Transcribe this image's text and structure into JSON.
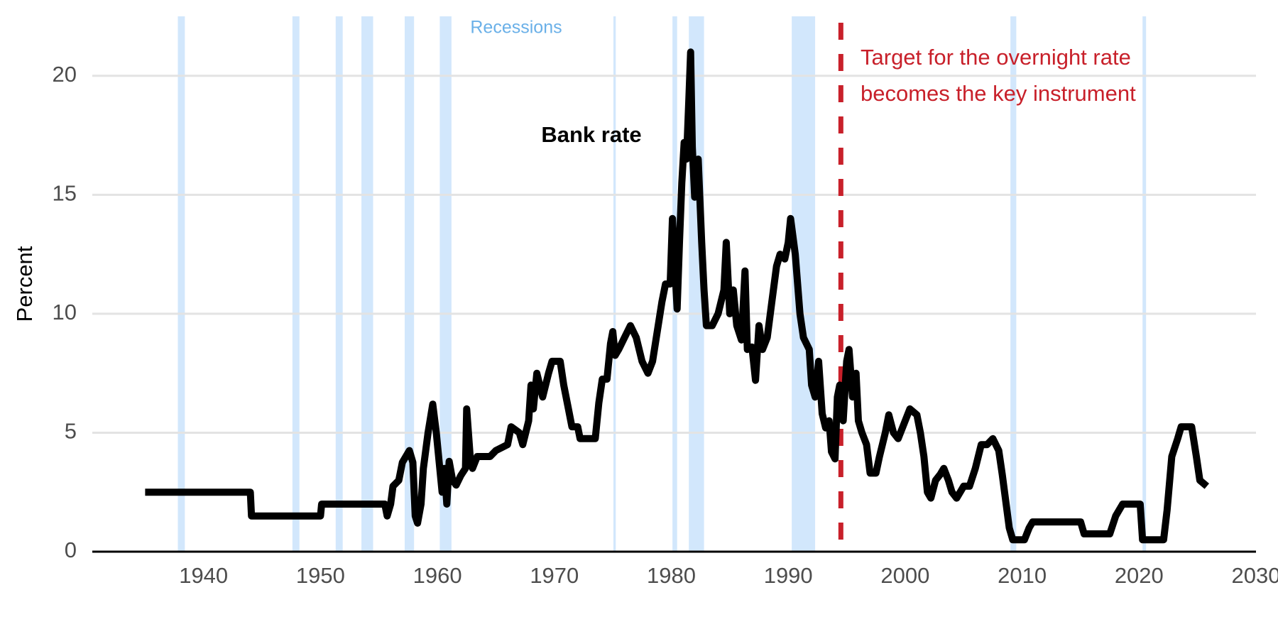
{
  "chart_data": {
    "type": "line",
    "y_label": "Percent",
    "recession_label": "Recessions",
    "target_note": [
      "Target for the overnight rate",
      "becomes the key instrument"
    ],
    "target_year": 1994.5,
    "target_color": "#c8202a",
    "recession_color": "#d2e7fc",
    "recessions": [
      [
        1937.8,
        1938.4
      ],
      [
        1947.6,
        1948.2
      ],
      [
        1951.3,
        1951.9
      ],
      [
        1953.5,
        1954.5
      ],
      [
        1957.2,
        1958.0
      ],
      [
        1960.2,
        1961.2
      ],
      [
        1975.05,
        1975.25
      ],
      [
        1980.1,
        1980.5
      ],
      [
        1981.5,
        1982.8
      ],
      [
        1990.3,
        1992.3
      ],
      [
        2009.0,
        2009.5
      ],
      [
        2020.3,
        2020.6
      ]
    ],
    "xlim": [
      1930,
      2030
    ],
    "ylim": [
      0,
      22.5
    ],
    "xticks": [
      1940,
      1950,
      1960,
      1970,
      1980,
      1990,
      2000,
      2010,
      2020,
      2030
    ],
    "yticks": [
      0,
      5,
      10,
      15,
      20
    ],
    "grid": true,
    "x": [
      1935,
      1944,
      1944.1,
      1950,
      1950.1,
      1955.5,
      1955.7,
      1956,
      1956.2,
      1956.7,
      1957,
      1957.3,
      1957.6,
      1957.9,
      1958.1,
      1958.3,
      1958.6,
      1958.8,
      1959.2,
      1959.6,
      1959.9,
      1960.2,
      1960.4,
      1960.6,
      1960.8,
      1961,
      1961.3,
      1961.6,
      1962,
      1962.4,
      1962.5,
      1962.8,
      1963,
      1963.4,
      1964.5,
      1965,
      1966,
      1966.3,
      1967,
      1967.3,
      1967.8,
      1968,
      1968.2,
      1968.5,
      1969,
      1969.5,
      1969.8,
      1970.5,
      1970.8,
      1971.2,
      1971.5,
      1972,
      1972.2,
      1973.5,
      1973.8,
      1974.1,
      1974.5,
      1974.8,
      1975,
      1975.2,
      1975.5,
      1976,
      1976.5,
      1977,
      1977.5,
      1978,
      1978.4,
      1978.8,
      1979.2,
      1979.5,
      1979.9,
      1980.1,
      1980.3,
      1980.5,
      1980.7,
      1980.9,
      1981.1,
      1981.3,
      1981.5,
      1981.65,
      1981.8,
      1982,
      1982.3,
      1982.6,
      1982.8,
      1983,
      1983.5,
      1984,
      1984.5,
      1984.7,
      1985,
      1985.3,
      1985.6,
      1986,
      1986.3,
      1986.5,
      1986.9,
      1987.2,
      1987.5,
      1987.8,
      1988.2,
      1988.6,
      1989,
      1989.3,
      1989.7,
      1990,
      1990.2,
      1990.6,
      1991,
      1991.3,
      1991.8,
      1992,
      1992.3,
      1992.6,
      1992.9,
      1993.2,
      1993.5,
      1993.7,
      1994,
      1994.2,
      1994.4,
      1994.7,
      1995,
      1995.2,
      1995.5,
      1995.8,
      1996,
      1996.3,
      1996.7,
      1997,
      1997.5,
      1997.8,
      1998.3,
      1998.6,
      1999,
      1999.4,
      2000,
      2000.4,
      2001,
      2001.3,
      2001.6,
      2001.9,
      2002.2,
      2002.6,
      2003,
      2003.3,
      2003.7,
      2004,
      2004.4,
      2005,
      2005.5,
      2006,
      2006.5,
      2007,
      2007.5,
      2008,
      2008.3,
      2008.9,
      2009.2,
      2010.2,
      2010.6,
      2010.9,
      2015,
      2015.3,
      2017.5,
      2018,
      2018.6,
      2020.1,
      2020.3,
      2022.1,
      2022.4,
      2022.8,
      2023.3,
      2023.6,
      2024.5,
      2024.9,
      2025.2,
      2025.8
    ],
    "series": [
      {
        "name": "Bank rate",
        "color": "#000000",
        "values": [
          2.5,
          2.5,
          1.5,
          1.5,
          2.0,
          2.0,
          1.5,
          2.0,
          2.75,
          3.0,
          3.75,
          4.0,
          4.25,
          3.75,
          1.5,
          1.2,
          2.0,
          3.5,
          5.0,
          6.2,
          5.0,
          3.5,
          2.5,
          3.5,
          2.0,
          3.8,
          3.0,
          2.8,
          3.2,
          3.5,
          6.0,
          4.0,
          3.5,
          4.0,
          4.0,
          4.25,
          4.5,
          5.25,
          5.0,
          4.5,
          5.5,
          7.0,
          6.0,
          7.5,
          6.5,
          7.5,
          8.0,
          8.0,
          7.0,
          6.0,
          5.25,
          5.25,
          4.75,
          4.75,
          6.25,
          7.25,
          7.25,
          8.75,
          9.25,
          8.25,
          8.5,
          9.0,
          9.5,
          9.0,
          8.0,
          7.5,
          8.0,
          9.25,
          10.5,
          11.25,
          11.25,
          14.0,
          12.0,
          10.2,
          13.0,
          15.5,
          17.2,
          16.5,
          19.0,
          21.0,
          17.0,
          14.9,
          16.5,
          13.0,
          11.0,
          9.5,
          9.5,
          10.0,
          11.0,
          13.0,
          10.0,
          11.0,
          9.5,
          8.9,
          11.8,
          8.5,
          8.6,
          7.2,
          9.5,
          8.5,
          9.0,
          10.5,
          12.0,
          12.5,
          12.3,
          13.0,
          14.0,
          12.5,
          10.0,
          9.0,
          8.5,
          7.0,
          6.5,
          8.0,
          5.8,
          5.2,
          5.5,
          4.2,
          3.9,
          6.5,
          7.0,
          5.5,
          8.0,
          8.5,
          6.5,
          7.5,
          5.5,
          5.0,
          4.5,
          3.3,
          3.3,
          4.0,
          5.0,
          5.75,
          5.0,
          4.75,
          5.5,
          6.0,
          5.75,
          5.0,
          4.0,
          2.5,
          2.25,
          3.0,
          3.25,
          3.5,
          3.0,
          2.5,
          2.25,
          2.75,
          2.75,
          3.5,
          4.5,
          4.5,
          4.75,
          4.25,
          3.25,
          1.0,
          0.5,
          0.5,
          1.0,
          1.25,
          1.25,
          0.75,
          0.75,
          1.5,
          2.0,
          2.0,
          0.5,
          0.5,
          1.75,
          4.0,
          4.75,
          5.25,
          5.25,
          4.0,
          3.0,
          2.75
        ]
      }
    ]
  }
}
